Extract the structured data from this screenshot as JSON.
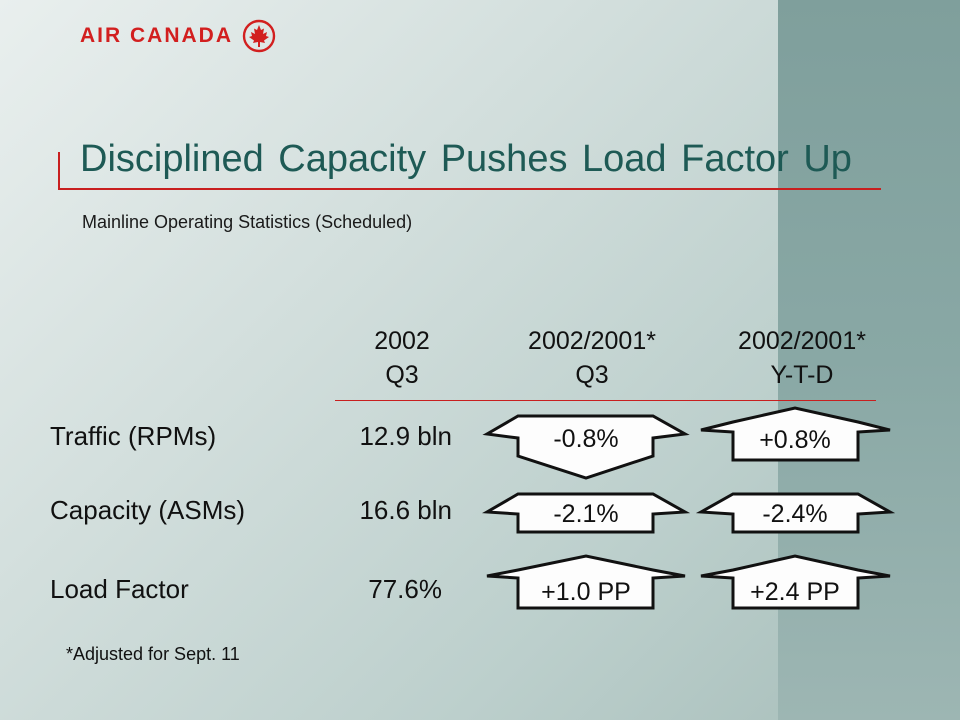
{
  "brand": {
    "name": "AIR CANADA",
    "logo_icon": "maple-leaf-roundel-icon",
    "color": "#d21f1f"
  },
  "title": "Disciplined Capacity Pushes Load Factor Up",
  "subtitle": "Mainline Operating Statistics (Scheduled)",
  "columns": [
    {
      "line1": "2002",
      "line2": "Q3"
    },
    {
      "line1": "2002/2001*",
      "line2": "Q3"
    },
    {
      "line1": "2002/2001*",
      "line2": "Y-T-D"
    }
  ],
  "rows": [
    {
      "label": "Traffic (RPMs)",
      "value": "12.9 bln",
      "q3": {
        "text": "-0.8%",
        "direction": "down"
      },
      "ytd": {
        "text": "+0.8%",
        "direction": "up"
      }
    },
    {
      "label": "Capacity (ASMs)",
      "value": "16.6 bln",
      "q3": {
        "text": "-2.1%",
        "direction": "flat"
      },
      "ytd": {
        "text": "-2.4%",
        "direction": "flat"
      }
    },
    {
      "label": "Load Factor",
      "value": "77.6%",
      "q3": {
        "text": "+1.0 PP",
        "direction": "up"
      },
      "ytd": {
        "text": "+2.4 PP",
        "direction": "up"
      }
    }
  ],
  "footnote": "*Adjusted for Sept. 11"
}
